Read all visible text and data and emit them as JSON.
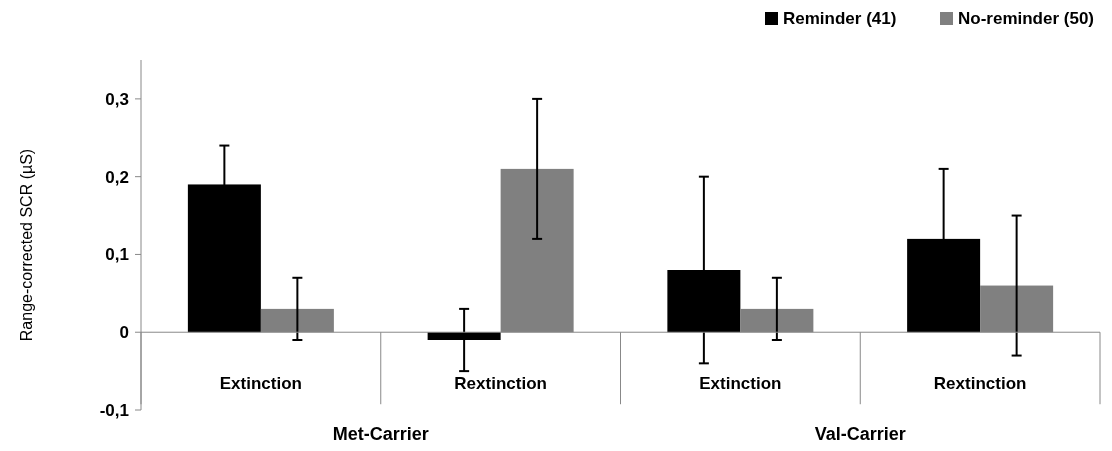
{
  "chart_data": {
    "type": "bar",
    "ylabel": "Range-corrected SCR (µS)",
    "categories": [
      "Extinction",
      "Rextinction",
      "Extinction",
      "Rextinction"
    ],
    "series": [
      {
        "name": "Reminder (41)",
        "color": "#000000",
        "values": [
          0.19,
          -0.01,
          0.08,
          0.12
        ],
        "errors": [
          0.05,
          0.04,
          0.12,
          0.09
        ]
      },
      {
        "name": "No-reminder (50)",
        "color": "#808080",
        "values": [
          0.03,
          0.21,
          0.03,
          0.06
        ],
        "errors": [
          0.04,
          0.09,
          0.04,
          0.09
        ]
      }
    ],
    "annotations": [
      "Met-Carrier",
      "Val-Carrier"
    ],
    "ylim": [
      -0.1,
      0.35
    ],
    "yticks": [
      {
        "value": -0.1,
        "label": "-0,1"
      },
      {
        "value": 0,
        "label": "0"
      },
      {
        "value": 0.1,
        "label": "0,1"
      },
      {
        "value": 0.2,
        "label": "0,2"
      },
      {
        "value": 0.3,
        "label": "0,3"
      }
    ],
    "grid": false,
    "legend": "top right"
  }
}
